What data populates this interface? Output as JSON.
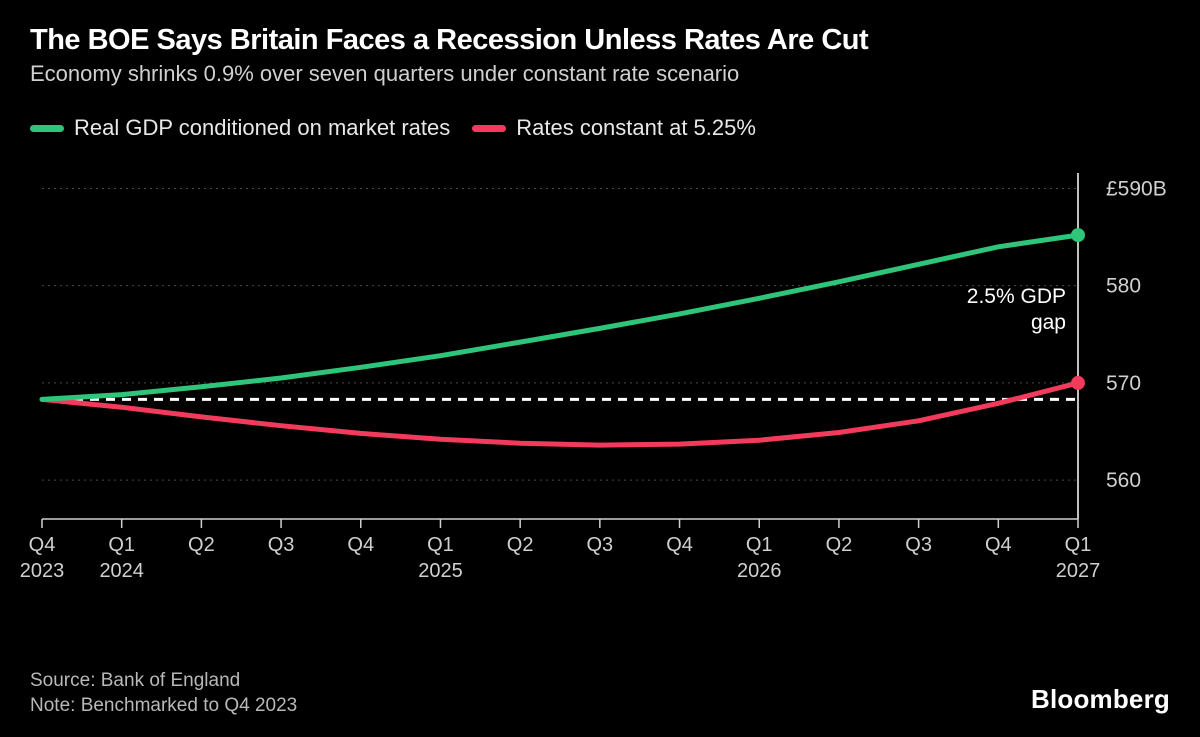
{
  "title": "The BOE Says Britain Faces a Recession Unless Rates Are Cut",
  "subtitle": "Economy shrinks 0.9% over seven quarters under constant rate scenario",
  "legend": {
    "series1": {
      "label": "Real GDP conditioned on market rates",
      "color": "#2ec47a"
    },
    "series2": {
      "label": "Rates constant at 5.25%",
      "color": "#f23a5d"
    }
  },
  "chart": {
    "type": "line",
    "background_color": "#000000",
    "grid_color": "#4a4a4a",
    "axis_color": "#d0d0d0",
    "text_color": "#d0d0d0",
    "baseline_color": "#ffffff",
    "endpoint_line_color": "#ffffff",
    "line_width": 5,
    "marker_radius": 7,
    "yaxis": {
      "currency_label": "£590B",
      "ticks": [
        560,
        570,
        580,
        590
      ],
      "ylim": [
        556,
        592
      ],
      "baseline_value": 568.3
    },
    "xaxis": {
      "categories": [
        "Q4",
        "Q1",
        "Q2",
        "Q3",
        "Q4",
        "Q1",
        "Q2",
        "Q3",
        "Q4",
        "Q1",
        "Q2",
        "Q3",
        "Q4",
        "Q1"
      ],
      "years": [
        "2023",
        "2024",
        "",
        "",
        "",
        "2025",
        "",
        "",
        "",
        "2026",
        "",
        "",
        "",
        "2027"
      ]
    },
    "series1_values": [
      568.3,
      568.8,
      569.6,
      570.5,
      571.6,
      572.8,
      574.2,
      575.6,
      577.1,
      578.7,
      580.4,
      582.2,
      584.0,
      585.2
    ],
    "series2_values": [
      568.3,
      567.5,
      566.5,
      565.6,
      564.8,
      564.2,
      563.8,
      563.6,
      563.7,
      564.1,
      564.9,
      566.1,
      567.9,
      570.0
    ],
    "annotation": {
      "line1": "2.5% GDP",
      "line2": "gap"
    }
  },
  "footer": {
    "source": "Source: Bank of England",
    "note": "Note: Benchmarked to Q4 2023"
  },
  "brand": "Bloomberg"
}
